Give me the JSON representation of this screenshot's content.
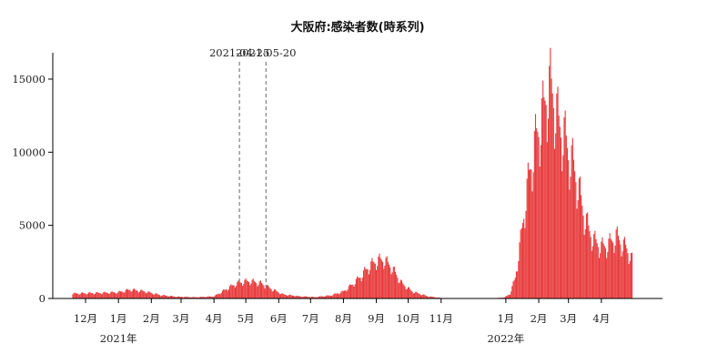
{
  "chart_data": {
    "type": "bar",
    "title": "大阪府:感染者数(時系列)",
    "xlabel": "",
    "ylabel": "",
    "ylim": [
      0,
      16800
    ],
    "y_ticks": [
      {
        "value": 0,
        "label": "0"
      },
      {
        "value": 5000,
        "label": "5000"
      },
      {
        "value": 10000,
        "label": "10000"
      },
      {
        "value": 15000,
        "label": "15000"
      }
    ],
    "x_range": [
      "2020-11-19",
      "2022-05-08"
    ],
    "x_ticks": [
      {
        "date": "2020-12-01",
        "label": "12月"
      },
      {
        "date": "2021-01-01",
        "label": "1月"
      },
      {
        "date": "2021-02-01",
        "label": "2月"
      },
      {
        "date": "2021-03-01",
        "label": "3月"
      },
      {
        "date": "2021-04-01",
        "label": "4月"
      },
      {
        "date": "2021-05-01",
        "label": "5月"
      },
      {
        "date": "2021-06-01",
        "label": "6月"
      },
      {
        "date": "2021-07-01",
        "label": "7月"
      },
      {
        "date": "2021-08-01",
        "label": "8月"
      },
      {
        "date": "2021-09-01",
        "label": "9月"
      },
      {
        "date": "2021-10-01",
        "label": "10月"
      },
      {
        "date": "2021-11-01",
        "label": "11月"
      },
      {
        "date": "2022-01-01",
        "label": "1月"
      },
      {
        "date": "2022-02-01",
        "label": "2月"
      },
      {
        "date": "2022-03-01",
        "label": "3月"
      },
      {
        "date": "2022-04-01",
        "label": "4月"
      }
    ],
    "year_labels": [
      {
        "date": "2021-01-01",
        "label": "2021年"
      },
      {
        "date": "2022-01-01",
        "label": "2022年"
      }
    ],
    "vlines": [
      {
        "date": "2021-04-25",
        "label": "2021-04-25"
      },
      {
        "date": "2021-05-20",
        "label": "2021-05-20"
      }
    ],
    "bar_color": "#e8393a",
    "series": [
      {
        "x": [
          "2020-11-19",
          "2020-12-01",
          "2020-12-15",
          "2021-01-01",
          "2021-01-12",
          "2021-01-25",
          "2021-02-10",
          "2021-02-25",
          "2021-03-15",
          "2021-04-01",
          "2021-04-10",
          "2021-04-20",
          "2021-04-28",
          "2021-05-05",
          "2021-05-15",
          "2021-05-25",
          "2021-06-05",
          "2021-06-20",
          "2021-07-05",
          "2021-07-20",
          "2021-08-01",
          "2021-08-10",
          "2021-08-18",
          "2021-08-25",
          "2021-09-01",
          "2021-09-08",
          "2021-09-15",
          "2021-09-25",
          "2021-10-05",
          "2021-10-20",
          "2021-11-01",
          "2021-11-15",
          "2021-12-01",
          "2021-12-20",
          "2021-12-31",
          "2022-01-05",
          "2022-01-10",
          "2022-01-15",
          "2022-01-20",
          "2022-01-25",
          "2022-01-31",
          "2022-02-05",
          "2022-02-08",
          "2022-02-12",
          "2022-02-16",
          "2022-02-20",
          "2022-02-25",
          "2022-03-01",
          "2022-03-05",
          "2022-03-10",
          "2022-03-15",
          "2022-03-20",
          "2022-03-25",
          "2022-04-01",
          "2022-04-08",
          "2022-04-15",
          "2022-04-20",
          "2022-04-25",
          "2022-04-30"
        ],
        "values": [
          350,
          380,
          400,
          450,
          640,
          520,
          240,
          130,
          90,
          150,
          550,
          1000,
          1200,
          1250,
          1100,
          700,
          300,
          160,
          100,
          220,
          500,
          1050,
          1650,
          2300,
          2700,
          2800,
          2300,
          1100,
          500,
          150,
          40,
          12,
          8,
          10,
          80,
          350,
          1500,
          4200,
          7300,
          9800,
          12000,
          13300,
          14700,
          15300,
          14200,
          12500,
          11800,
          10500,
          9800,
          8200,
          6300,
          5000,
          4200,
          3700,
          3900,
          4500,
          4000,
          3600,
          2800
        ]
      }
    ]
  }
}
